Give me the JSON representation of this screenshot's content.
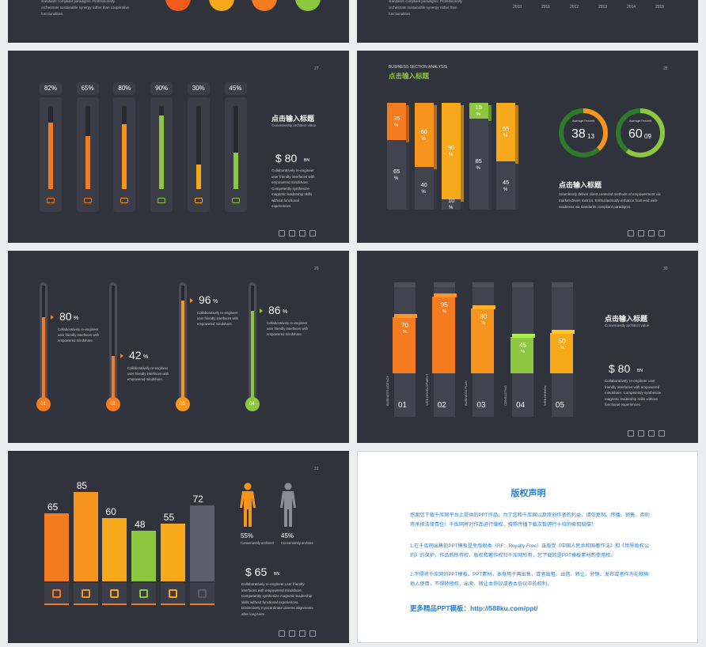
{
  "top_left": {
    "lines": [
      "standards compliant paradigms. Professionally",
      "orchestrate sustainable synergy rather than cooperative",
      "functionalities."
    ],
    "circle_colors": [
      "#f25c19",
      "#f7a81b",
      "#f47b20",
      "#8dc63f"
    ]
  },
  "top_right": {
    "lines": [
      "standards compliant paradigms. Professionally",
      "orchestrate sustainable synergy rather than",
      "functionalities."
    ],
    "years": [
      "2010",
      "2011",
      "2012",
      "2013",
      "2014",
      "2015"
    ]
  },
  "slide_27": {
    "page": "27",
    "values": [
      82,
      65,
      80,
      90,
      30,
      45
    ],
    "value_labels": [
      "82%",
      "65%",
      "80%",
      "90%",
      "30%",
      "45%"
    ],
    "colors": [
      "#f47b20",
      "#f47b20",
      "#f7941d",
      "#8dc63f",
      "#f7a81b",
      "#8dc63f"
    ],
    "title": "点击输入标题",
    "subtitle": "Conveniently architect value",
    "price": "$ 80",
    "unit": "BN",
    "description": [
      "Collaboratively re-engineer",
      "user friendly interfaces with",
      "empowered mindshare.",
      "Competently synthesize",
      "magnetic leadership skills",
      "without functional",
      "experiences."
    ]
  },
  "slide_28": {
    "page": "28",
    "header": "BUSINESS SECTION ANALYSIS",
    "header_title": "点击输入标题",
    "top_values": [
      35,
      60,
      90,
      15,
      55
    ],
    "bottom_values": [
      65,
      40,
      10,
      85,
      45
    ],
    "unit": "%",
    "colors": [
      "#f47b20",
      "#f7941d",
      "#f7a81b",
      "#8dc63f",
      "#f7a81b"
    ],
    "donuts": [
      {
        "label": "Average Percent",
        "major": 38,
        "minor": "13",
        "color": "#f7941d"
      },
      {
        "label": "Average Percent",
        "major": 60,
        "minor": "09",
        "color": "#8dc63f"
      }
    ],
    "title": "点击输入标题",
    "description": [
      "Seamlessly deliver client-centered methods of empowerment via",
      "market-driven metrics. Enthusiastically enhance front-end web-",
      "readiness via standards compliant paradigms."
    ]
  },
  "slide_29": {
    "page": "29",
    "values": [
      80,
      42,
      96,
      86
    ],
    "unit": "%",
    "labels": [
      "01",
      "02",
      "03",
      "04"
    ],
    "colors": [
      "#f47b20",
      "#f47b20",
      "#f7941d",
      "#8dc63f"
    ],
    "description": [
      "Collaboratively re-engineer",
      "user friendly interfaces with",
      "empowered mindshare."
    ]
  },
  "slide_30": {
    "page": "30",
    "values": [
      70,
      95,
      80,
      45,
      50
    ],
    "unit": "%",
    "categories": [
      "BUSINESS AGENCY",
      "WEB DEVELOPMENT",
      "BUSINESS PLAN",
      "CONSULTING",
      "WEB DESIGN"
    ],
    "numbers": [
      "01",
      "02",
      "03",
      "04",
      "05"
    ],
    "colors": [
      "#f47b20",
      "#f47b20",
      "#f7941d",
      "#8dc63f",
      "#f7a81b"
    ],
    "title": "点击输入标题",
    "subtitle": "Conveniently architect value",
    "price": "$ 80",
    "unit_bn": "BN",
    "description": [
      "Collaboratively re-engineer user",
      "friendly interfaces with empowered",
      "mindshare. Competently synthesize",
      "magnetic leadership skills without",
      "functional experiences."
    ]
  },
  "slide_31": {
    "page": "31",
    "values": [
      65,
      85,
      60,
      48,
      55,
      72
    ],
    "colors": [
      "#f47b20",
      "#f7941d",
      "#f7a81b",
      "#8dc63f",
      "#f7a81b",
      "#5a5e6a"
    ],
    "people": [
      {
        "value": 55,
        "value_label": "55%",
        "caption": "Conveniently architect",
        "color": "#f7941d"
      },
      {
        "value": 45,
        "value_label": "45%",
        "caption": "Conveniently architec",
        "color": "#8a8d96"
      }
    ],
    "price": "$ 65",
    "unit": "BN",
    "description": [
      "Collaboratively re-engineer user friendly",
      "interfaces with empowered mindshare.",
      "Competently synthesize magnetic leadership",
      "skills without functional experiences.",
      "Distinctively myocardinate diverse alignments",
      "after long-term"
    ]
  },
  "copyright": {
    "title": "版权声明",
    "intro": "感谢您下载千库网平台上提供的PPT作品，为了您和千库网以及原创作者的利益，请勿复制、传播、销售，否则将承担法律责任！千库网将对作品进行维权，按照传播下载次数进行十倍的索取赔偿！",
    "items": [
      "1.在千库网出售的PPT模板是免版税类（RF：Royalty-Free）正版受《中国人民共和国著作法》和《世界版权公约》的保护，作品的所有权、版权和著作权归千库网所有，您下载的是PPT模板素材的使用权。",
      "2.不得将千库网的PPT模板、PPT素材，本身用于再出售，或者出租、出借、转让、分销、发布或者作为礼物供他人使用，不得转授权、出卖、转让本协议或者本协议中的权利。"
    ],
    "link": "更多精品PPT模板：http://588ku.com/ppt/"
  }
}
